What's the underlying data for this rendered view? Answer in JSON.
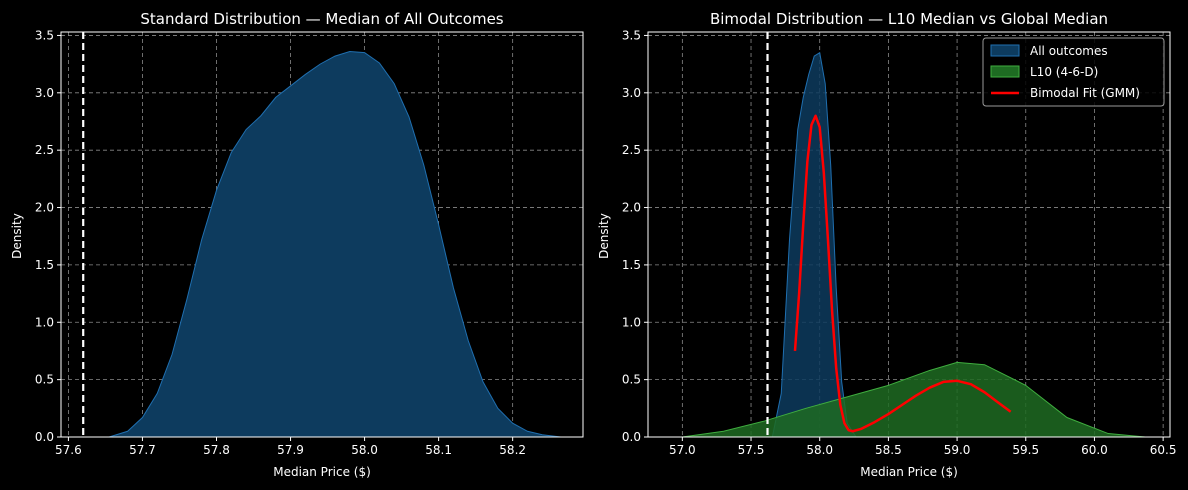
{
  "chart_data": [
    {
      "type": "area",
      "title": "Standard Distribution — Median of All Outcomes",
      "xlabel": "Median Price ($)",
      "ylabel": "Density",
      "xlim": [
        57.59,
        58.295
      ],
      "ylim": [
        0,
        3.53
      ],
      "xticks": [
        "57.6",
        "57.7",
        "57.8",
        "57.9",
        "58.0",
        "58.1",
        "58.2"
      ],
      "yticks": [
        "0.0",
        "0.5",
        "1.0",
        "1.5",
        "2.0",
        "2.5",
        "3.0",
        "3.5"
      ],
      "grid": true,
      "reference_line": {
        "x": 57.62,
        "style": "dashed",
        "color": "#ffffff"
      },
      "series": [
        {
          "color": "#1f6fb0",
          "fill": "#0d3b5e",
          "x": [
            57.655,
            57.68,
            57.7,
            57.72,
            57.74,
            57.76,
            57.78,
            57.8,
            57.82,
            57.84,
            57.86,
            57.88,
            57.9,
            57.92,
            57.94,
            57.96,
            57.98,
            58.0,
            58.02,
            58.04,
            58.06,
            58.08,
            58.1,
            58.12,
            58.14,
            58.16,
            58.18,
            58.2,
            58.22,
            58.24,
            58.265
          ],
          "y": [
            0.0,
            0.05,
            0.17,
            0.38,
            0.72,
            1.2,
            1.72,
            2.15,
            2.48,
            2.68,
            2.8,
            2.96,
            3.06,
            3.16,
            3.25,
            3.32,
            3.36,
            3.35,
            3.26,
            3.08,
            2.79,
            2.37,
            1.85,
            1.3,
            0.84,
            0.48,
            0.25,
            0.12,
            0.05,
            0.02,
            0.0
          ]
        }
      ]
    },
    {
      "type": "area",
      "title": "Bimodal Distribution — L10 Median vs Global Median",
      "xlabel": "Median Price ($)",
      "ylabel": "Density",
      "xlim": [
        56.75,
        60.55
      ],
      "ylim": [
        0,
        3.53
      ],
      "xticks": [
        "57.0",
        "57.5",
        "58.0",
        "58.5",
        "59.0",
        "59.5",
        "60.0",
        "60.5"
      ],
      "yticks": [
        "0.0",
        "0.5",
        "1.0",
        "1.5",
        "2.0",
        "2.5",
        "3.0",
        "3.5"
      ],
      "grid": true,
      "legend_position": "top-right",
      "reference_line": {
        "x": 57.62,
        "style": "dashed",
        "color": "#ffffff"
      },
      "series": [
        {
          "name": "All outcomes",
          "kind": "area",
          "color": "#1f6fb0",
          "fill": "#0d3b5e",
          "x": [
            57.655,
            57.72,
            57.78,
            57.84,
            57.88,
            57.92,
            57.96,
            58.0,
            58.04,
            58.08,
            58.12,
            58.16,
            58.2,
            58.265
          ],
          "y": [
            0.0,
            0.38,
            1.72,
            2.68,
            2.96,
            3.16,
            3.32,
            3.35,
            3.08,
            2.37,
            1.3,
            0.48,
            0.12,
            0.0
          ]
        },
        {
          "name": "L10 (4-6-D)",
          "kind": "area",
          "color": "#3fae3f",
          "fill": "#1e6b22",
          "x": [
            57.0,
            57.3,
            57.6,
            57.9,
            58.2,
            58.5,
            58.8,
            59.0,
            59.2,
            59.5,
            59.8,
            60.1,
            60.37
          ],
          "y": [
            0.0,
            0.05,
            0.14,
            0.25,
            0.35,
            0.45,
            0.58,
            0.65,
            0.63,
            0.45,
            0.17,
            0.03,
            0.0
          ]
        },
        {
          "name": "Bimodal Fit (GMM)",
          "kind": "line",
          "color": "#ff0000",
          "x": [
            57.82,
            57.85,
            57.88,
            57.91,
            57.94,
            57.97,
            58.0,
            58.03,
            58.06,
            58.09,
            58.12,
            58.15,
            58.18,
            58.21,
            58.24,
            58.3,
            58.4,
            58.5,
            58.6,
            58.7,
            58.8,
            58.9,
            59.0,
            59.1,
            59.2,
            59.3,
            59.39
          ],
          "y": [
            0.75,
            1.25,
            1.85,
            2.4,
            2.72,
            2.8,
            2.7,
            2.3,
            1.72,
            1.1,
            0.6,
            0.28,
            0.12,
            0.06,
            0.05,
            0.07,
            0.13,
            0.2,
            0.28,
            0.36,
            0.43,
            0.48,
            0.49,
            0.46,
            0.39,
            0.3,
            0.22
          ]
        }
      ]
    }
  ]
}
